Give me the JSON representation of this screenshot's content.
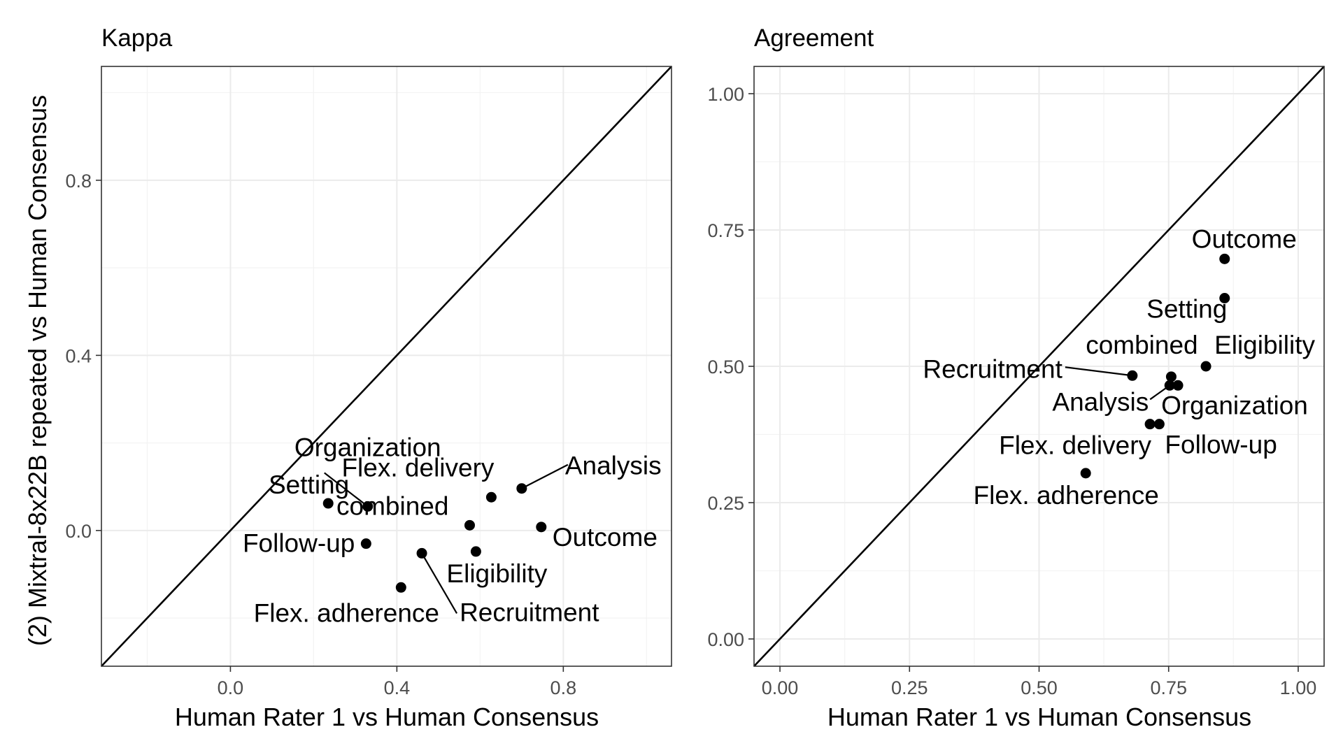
{
  "y_title": "(2) Mixtral-8x22B repeated vs Human Consensus",
  "chart_data": [
    {
      "type": "scatter",
      "title": "Kappa",
      "xlabel": "Human Rater 1 vs Human Consensus",
      "ylabel": "(2) Mixtral-8x22B repeated vs Human Consensus",
      "xlim": [
        -0.31,
        1.06
      ],
      "ylim": [
        -0.31,
        1.06
      ],
      "x_ticks": [
        0.0,
        0.4,
        0.8
      ],
      "x_tick_labels": [
        "0.0",
        "0.4",
        "0.8"
      ],
      "y_ticks": [
        0.0,
        0.4,
        0.8
      ],
      "y_tick_labels": [
        "0.0",
        "0.4",
        "0.8"
      ],
      "x_minor": [
        -0.2,
        0.2,
        0.6,
        1.0
      ],
      "y_minor": [
        -0.2,
        0.2,
        0.6,
        1.0
      ],
      "grid": true,
      "reference_line": "y = x",
      "points": [
        {
          "label": "Organization",
          "x": 0.33,
          "y": 0.055
        },
        {
          "label": "Setting",
          "x": 0.235,
          "y": 0.062
        },
        {
          "label": "combined",
          "x": 0.575,
          "y": 0.012
        },
        {
          "label": "Flex. delivery",
          "x": 0.627,
          "y": 0.076
        },
        {
          "label": "Analysis",
          "x": 0.7,
          "y": 0.096
        },
        {
          "label": "Follow-up",
          "x": 0.326,
          "y": -0.03
        },
        {
          "label": "Outcome",
          "x": 0.747,
          "y": 0.008
        },
        {
          "label": "Eligibility",
          "x": 0.59,
          "y": -0.048
        },
        {
          "label": "Recruitment",
          "x": 0.46,
          "y": -0.052
        },
        {
          "label": "Flex. adherence",
          "x": 0.41,
          "y": -0.13
        }
      ]
    },
    {
      "type": "scatter",
      "title": "Agreement",
      "xlabel": "Human Rater 1 vs Human Consensus",
      "ylabel": "",
      "xlim": [
        -0.05,
        1.05
      ],
      "ylim": [
        -0.05,
        1.05
      ],
      "x_ticks": [
        0.0,
        0.25,
        0.5,
        0.75,
        1.0
      ],
      "x_tick_labels": [
        "0.00",
        "0.25",
        "0.50",
        "0.75",
        "1.00"
      ],
      "y_ticks": [
        0.0,
        0.25,
        0.5,
        0.75,
        1.0
      ],
      "y_tick_labels": [
        "0.00",
        "0.25",
        "0.50",
        "0.75",
        "1.00"
      ],
      "x_minor": [
        0.125,
        0.375,
        0.625,
        0.875
      ],
      "y_minor": [
        0.125,
        0.375,
        0.625,
        0.875
      ],
      "grid": true,
      "reference_line": "y = x",
      "points": [
        {
          "label": "Outcome",
          "x": 0.858,
          "y": 0.697
        },
        {
          "label": "Setting",
          "x": 0.858,
          "y": 0.625
        },
        {
          "label": "Eligibility",
          "x": 0.822,
          "y": 0.5
        },
        {
          "label": "combined",
          "x": 0.755,
          "y": 0.481
        },
        {
          "label": "Recruitment",
          "x": 0.68,
          "y": 0.483
        },
        {
          "label": "Analysis",
          "x": 0.752,
          "y": 0.465
        },
        {
          "label": "Organization",
          "x": 0.768,
          "y": 0.465
        },
        {
          "label": "Follow-up",
          "x": 0.732,
          "y": 0.394
        },
        {
          "label": "Flex. delivery",
          "x": 0.714,
          "y": 0.394
        },
        {
          "label": "Flex. adherence",
          "x": 0.59,
          "y": 0.304
        }
      ]
    }
  ]
}
